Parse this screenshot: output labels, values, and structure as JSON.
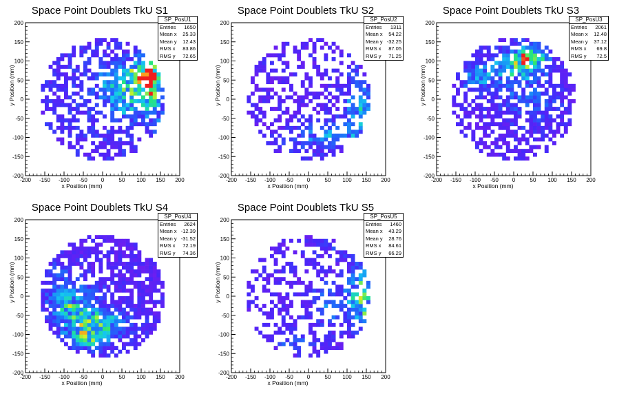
{
  "colors": {
    "background": "#ffffff",
    "axis": "#000000"
  },
  "chart_data": [
    {
      "type": "heatmap",
      "title": "Space Point Doublets TkU S1",
      "xlabel": "x Position (mm)",
      "ylabel": "y Position (mm)",
      "xlim": [
        -200,
        200
      ],
      "ylim": [
        -200,
        200
      ],
      "xticks": [
        -200,
        -150,
        -100,
        -50,
        0,
        50,
        100,
        150,
        200
      ],
      "yticks": [
        -200,
        -150,
        -100,
        -50,
        0,
        50,
        100,
        150,
        200
      ],
      "stats": {
        "name": "SP_PosU1",
        "rows": [
          [
            "Entries",
            "1650"
          ],
          [
            "Mean x",
            "25.33"
          ],
          [
            "Mean y",
            "12.43"
          ],
          [
            "RMS x",
            "83.86"
          ],
          [
            "RMS y",
            "72.65"
          ]
        ]
      },
      "occupancy": 0.5,
      "features": [
        {
          "cx": 60,
          "cy": 20,
          "sx": 45,
          "sy": 45,
          "amp": 0.35
        },
        {
          "cx": 130,
          "cy": 40,
          "sx": 22,
          "sy": 60,
          "amp": 0.45
        },
        {
          "cx": 100,
          "cy": 70,
          "sx": 30,
          "sy": 20,
          "amp": 0.3
        },
        {
          "cx": 0,
          "cy": 0,
          "sx": 140,
          "sy": 140,
          "amp": 0.08
        }
      ]
    },
    {
      "type": "heatmap",
      "title": "Space Point Doublets TkU S2",
      "xlabel": "x Position (mm)",
      "ylabel": "y Position (mm)",
      "xlim": [
        -200,
        200
      ],
      "ylim": [
        -200,
        200
      ],
      "xticks": [
        -200,
        -150,
        -100,
        -50,
        0,
        50,
        100,
        150,
        200
      ],
      "yticks": [
        -200,
        -150,
        -100,
        -50,
        0,
        50,
        100,
        150,
        200
      ],
      "stats": {
        "name": "SP_PosU2",
        "rows": [
          [
            "Entries",
            "1311"
          ],
          [
            "Mean x",
            "54.22"
          ],
          [
            "Mean y",
            "-32.25"
          ],
          [
            "RMS x",
            "87.05"
          ],
          [
            "RMS y",
            "71.25"
          ]
        ]
      },
      "occupancy": 0.42,
      "features": [
        {
          "cx": 130,
          "cy": -20,
          "sx": 25,
          "sy": 55,
          "amp": 0.35
        },
        {
          "cx": 60,
          "cy": -90,
          "sx": 45,
          "sy": 25,
          "amp": 0.25
        },
        {
          "cx": -30,
          "cy": -110,
          "sx": 40,
          "sy": 20,
          "amp": 0.15
        }
      ]
    },
    {
      "type": "heatmap",
      "title": "Space Point Doublets TkU S3",
      "xlabel": "x Position (mm)",
      "ylabel": "y Position (mm)",
      "xlim": [
        -200,
        200
      ],
      "ylim": [
        -200,
        200
      ],
      "xticks": [
        -200,
        -150,
        -100,
        -50,
        0,
        50,
        100,
        150,
        200
      ],
      "yticks": [
        -200,
        -150,
        -100,
        -50,
        0,
        50,
        100,
        150,
        200
      ],
      "stats": {
        "name": "SP_PosU3",
        "rows": [
          [
            "Entries",
            "2061"
          ],
          [
            "Mean x",
            "12.48"
          ],
          [
            "Mean y",
            "37.12"
          ],
          [
            "RMS x",
            "69.8"
          ],
          [
            "RMS y",
            "72.5"
          ]
        ]
      },
      "occupancy": 0.6,
      "features": [
        {
          "cx": 20,
          "cy": 90,
          "sx": 45,
          "sy": 30,
          "amp": 0.4
        },
        {
          "cx": 40,
          "cy": 110,
          "sx": 35,
          "sy": 20,
          "amp": 0.35
        },
        {
          "cx": -90,
          "cy": 60,
          "sx": 40,
          "sy": 30,
          "amp": 0.25
        },
        {
          "cx": 40,
          "cy": -10,
          "sx": 50,
          "sy": 40,
          "amp": 0.2
        }
      ]
    },
    {
      "type": "heatmap",
      "title": "Space Point Doublets TkU S4",
      "xlabel": "x Position (mm)",
      "ylabel": "y Position (mm)",
      "xlim": [
        -200,
        200
      ],
      "ylim": [
        -200,
        200
      ],
      "xticks": [
        -200,
        -150,
        -100,
        -50,
        0,
        50,
        100,
        150,
        200
      ],
      "yticks": [
        -200,
        -150,
        -100,
        -50,
        0,
        50,
        100,
        150,
        200
      ],
      "stats": {
        "name": "SP_PosU4",
        "rows": [
          [
            "Entries",
            "2624"
          ],
          [
            "Mean x",
            "-12.39"
          ],
          [
            "Mean y",
            "-31.52"
          ],
          [
            "RMS x",
            "72.19"
          ],
          [
            "RMS y",
            "74.36"
          ]
        ]
      },
      "occupancy": 0.68,
      "features": [
        {
          "cx": -60,
          "cy": -20,
          "sx": 40,
          "sy": 40,
          "amp": 0.3
        },
        {
          "cx": 0,
          "cy": -70,
          "sx": 60,
          "sy": 25,
          "amp": 0.35
        },
        {
          "cx": -40,
          "cy": -110,
          "sx": 40,
          "sy": 20,
          "amp": 0.4
        },
        {
          "cx": -110,
          "cy": 10,
          "sx": 30,
          "sy": 50,
          "amp": 0.2
        }
      ]
    },
    {
      "type": "heatmap",
      "title": "Space Point Doublets TkU S5",
      "xlabel": "x Position (mm)",
      "ylabel": "y Position (mm)",
      "xlim": [
        -200,
        200
      ],
      "ylim": [
        -200,
        200
      ],
      "xticks": [
        -200,
        -150,
        -100,
        -50,
        0,
        50,
        100,
        150,
        200
      ],
      "yticks": [
        -200,
        -150,
        -100,
        -50,
        0,
        50,
        100,
        150,
        200
      ],
      "stats": {
        "name": "SP_PosU5",
        "rows": [
          [
            "Entries",
            "1460"
          ],
          [
            "Mean x",
            "43.29"
          ],
          [
            "Mean y",
            "28.76"
          ],
          [
            "RMS x",
            "84.61"
          ],
          [
            "RMS y",
            "66.29"
          ]
        ]
      },
      "occupancy": 0.45,
      "features": [
        {
          "cx": 140,
          "cy": 0,
          "sx": 22,
          "sy": 60,
          "amp": 0.45
        },
        {
          "cx": 60,
          "cy": -20,
          "sx": 40,
          "sy": 40,
          "amp": 0.2
        },
        {
          "cx": -40,
          "cy": -110,
          "sx": 40,
          "sy": 25,
          "amp": 0.15
        },
        {
          "cx": 70,
          "cy": 130,
          "sx": 40,
          "sy": 20,
          "amp": 0.1
        }
      ]
    }
  ]
}
